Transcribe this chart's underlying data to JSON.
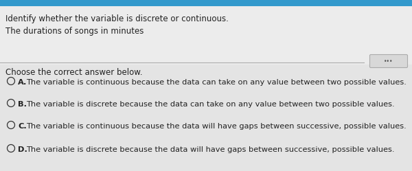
{
  "title_line1": "Identify whether the variable is discrete or continuous.",
  "title_line2": "The durations of songs in minutes",
  "section_header": "Choose the correct answer below.",
  "options": [
    {
      "label": "A.",
      "text": "The variable is continuous because the data can take on any value between two possible values."
    },
    {
      "label": "B.",
      "text": "The variable is discrete because the data can take on any value between two possible values."
    },
    {
      "label": "C.",
      "text": "The variable is continuous because the data will have gaps between successive, possible values."
    },
    {
      "label": "D.",
      "text": "The variable is discrete because the data will have gaps between successive, possible values."
    }
  ],
  "bg_color": "#e8e8e8",
  "bottom_bg_color": "#e0e0e0",
  "text_color": "#222222",
  "circle_color": "#333333",
  "divider_color": "#aaaaaa",
  "title_fontsize": 8.5,
  "body_fontsize": 8.2,
  "header_fontsize": 8.5,
  "figwidth": 6.0,
  "figheight": 2.49,
  "dpi": 100
}
